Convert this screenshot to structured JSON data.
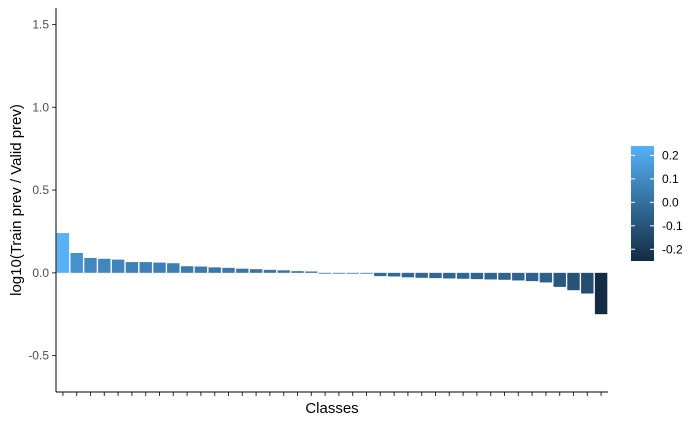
{
  "chart_data": {
    "type": "bar",
    "xlabel": "Classes",
    "ylabel": "log10(Train prev / Valid prev)",
    "ylim": [
      -0.72,
      1.6
    ],
    "yticks": [
      -0.5,
      0.0,
      0.5,
      1.0,
      1.5
    ],
    "ytick_labels": [
      "-0.5",
      "0.0",
      "0.5",
      "1.0",
      "1.5"
    ],
    "x_tick_labels_shown": false,
    "grid": false,
    "values": [
      0.24,
      0.12,
      0.09,
      0.085,
      0.08,
      0.065,
      0.065,
      0.062,
      0.058,
      0.04,
      0.038,
      0.033,
      0.03,
      0.025,
      0.022,
      0.018,
      0.015,
      0.01,
      0.008,
      0.0,
      0.0,
      0.0,
      0.0,
      -0.02,
      -0.022,
      -0.027,
      -0.03,
      -0.032,
      -0.034,
      -0.036,
      -0.038,
      -0.04,
      -0.042,
      -0.046,
      -0.05,
      -0.058,
      -0.085,
      -0.105,
      -0.125,
      -0.25
    ],
    "color_scale": {
      "low_color": "#132B43",
      "high_color": "#56B1F7",
      "min": -0.25,
      "max": 0.24,
      "legend_ticks": [
        0.2,
        0.1,
        0.0,
        -0.1,
        -0.2
      ],
      "legend_labels": [
        "0.2",
        "0.1",
        "0.0",
        "-0.1",
        "-0.2"
      ],
      "legend_placement": "right"
    }
  }
}
